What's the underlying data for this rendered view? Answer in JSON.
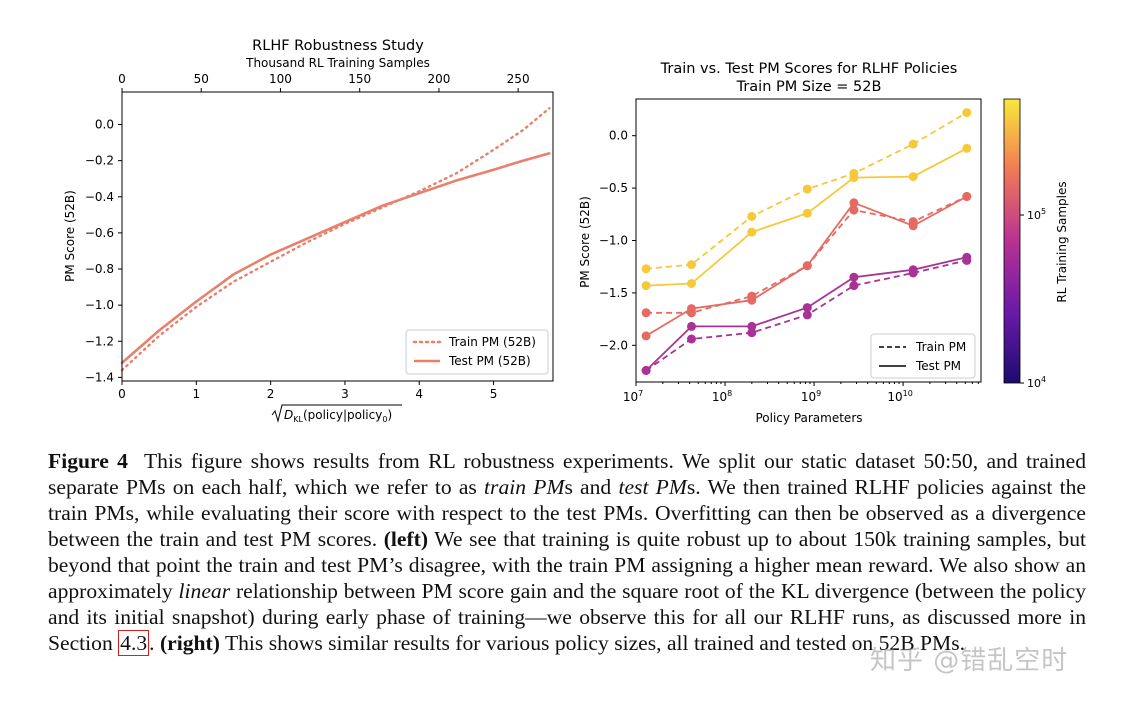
{
  "chart_data": [
    {
      "type": "line",
      "title": "RLHF Robustness Study",
      "top_xlabel": "Thousand RL Training Samples",
      "top_ticks": [
        0,
        50,
        100,
        150,
        200,
        250
      ],
      "top_xlim": [
        0,
        272
      ],
      "xlabel": "√D_KL(policy|policy₀)",
      "xlabel_main": "D",
      "xlabel_sub": "KL",
      "xlabel_tail": "(policy|policy",
      "xlabel_sub2": "0",
      "xlabel_end": ")",
      "xlim": [
        0,
        5.8
      ],
      "x_ticks": [
        0,
        1,
        2,
        3,
        4,
        5
      ],
      "ylabel": "PM Score (52B)",
      "ylim": [
        -1.42,
        0.18
      ],
      "y_ticks": [
        0.0,
        -0.2,
        -0.4,
        -0.6,
        -0.8,
        -1.0,
        -1.2,
        -1.4
      ],
      "y_tick_labels": [
        "0.0",
        "−0.2",
        "−0.4",
        "−0.6",
        "−0.8",
        "−1.0",
        "−1.2",
        "−1.4"
      ],
      "legend_position": "bottom-right",
      "series": [
        {
          "name": "Train PM (52B)",
          "style": "dotted",
          "color": "#e8806c",
          "x": [
            0,
            0.5,
            1,
            1.5,
            2,
            2.5,
            3,
            3.5,
            4,
            4.5,
            5,
            5.4,
            5.75
          ],
          "y": [
            -1.36,
            -1.17,
            -1.01,
            -0.87,
            -0.76,
            -0.65,
            -0.55,
            -0.46,
            -0.37,
            -0.27,
            -0.14,
            -0.03,
            0.09
          ]
        },
        {
          "name": "Test PM (52B)",
          "style": "solid",
          "color": "#e8806c",
          "x": [
            0,
            0.5,
            1,
            1.5,
            2,
            2.5,
            3,
            3.5,
            4,
            4.5,
            5,
            5.4,
            5.75
          ],
          "y": [
            -1.32,
            -1.14,
            -0.98,
            -0.83,
            -0.72,
            -0.63,
            -0.54,
            -0.45,
            -0.38,
            -0.31,
            -0.25,
            -0.2,
            -0.16
          ]
        }
      ]
    },
    {
      "type": "line",
      "title": "Train vs. Test PM Scores for RLHF Policies",
      "subtitle": "Train PM Size = 52B",
      "xlabel": "Policy Parameters",
      "xscale": "log",
      "xlim": [
        10000000.0,
        75000000000.0
      ],
      "x_ticks": [
        10000000.0,
        100000000.0,
        1000000000.0,
        10000000000.0
      ],
      "x_tick_base": "10",
      "x_tick_exponents": [
        "7",
        "8",
        "9",
        "10"
      ],
      "ylabel": "PM Score (52B)",
      "ylim": [
        -2.35,
        0.35
      ],
      "y_ticks": [
        0.0,
        -0.5,
        -1.0,
        -1.5,
        -2.0
      ],
      "y_tick_labels": [
        "0.0",
        "−0.5",
        "−1.0",
        "−1.5",
        "−2.0"
      ],
      "x": [
        13000000.0,
        42000000.0,
        200000000.0,
        840000000.0,
        2800000000.0,
        13000000000.0,
        52000000000.0
      ],
      "colorbar": {
        "label": "RL Training Samples",
        "ticks": [
          "10",
          "10"
        ],
        "exponents": [
          "4",
          "5"
        ],
        "range": [
          10000.0,
          400000.0
        ]
      },
      "legend": [
        {
          "label": "Train PM",
          "style": "dashed"
        },
        {
          "label": "Test PM",
          "style": "solid"
        }
      ],
      "legend_position": "bottom-right",
      "series": [
        {
          "samples": "low",
          "color": "#a83295",
          "train": [
            -2.24,
            -1.94,
            -1.88,
            -1.71,
            -1.43,
            -1.31,
            -1.19
          ],
          "test": [
            -2.24,
            -1.82,
            -1.82,
            -1.64,
            -1.35,
            -1.28,
            -1.16
          ]
        },
        {
          "samples": "mid",
          "color": "#e56b62",
          "train": [
            -1.69,
            -1.69,
            -1.53,
            -1.24,
            -0.71,
            -0.82,
            -0.58
          ],
          "test": [
            -1.91,
            -1.65,
            -1.57,
            -1.24,
            -0.64,
            -0.86,
            -0.58
          ]
        },
        {
          "samples": "high",
          "color": "#f6c93a",
          "train": [
            -1.27,
            -1.23,
            -0.77,
            -0.51,
            -0.36,
            -0.08,
            0.22
          ],
          "test": [
            -1.43,
            -1.41,
            -0.92,
            -0.74,
            -0.4,
            -0.39,
            -0.12
          ]
        }
      ]
    }
  ],
  "caption": {
    "label": "Figure 4",
    "p1": "This figure shows results from RL robustness experiments. We split our static dataset 50:50, and trained separate PMs on each half, which we refer to as ",
    "train_em": "train PM",
    "p2": "s and ",
    "test_em": "test PM",
    "p3": "s.  We then trained RLHF policies against the train PMs, while evaluating their score with respect to the test PMs. Overfitting can then be observed as a divergence between the train and test PM scores. ",
    "left_bold": "(left)",
    "p4": " We see that training is quite robust up to about 150k training samples, but beyond that point the train and test PM’s disagree, with the train PM assigning a higher mean reward. We also show an approximately ",
    "linear_em": "linear",
    "p5": " relationship between PM score gain and the  square root of the KL divergence (between the policy and its initial snapshot) during early phase of training—we observe this for all our RLHF runs, as discussed more in Section ",
    "section_ref": "4.3",
    "p6": ". ",
    "right_bold": "(right)",
    "p7": " This shows similar results for various policy sizes, all trained and tested on 52B PMs."
  },
  "watermark": "知乎 @错乱空时"
}
